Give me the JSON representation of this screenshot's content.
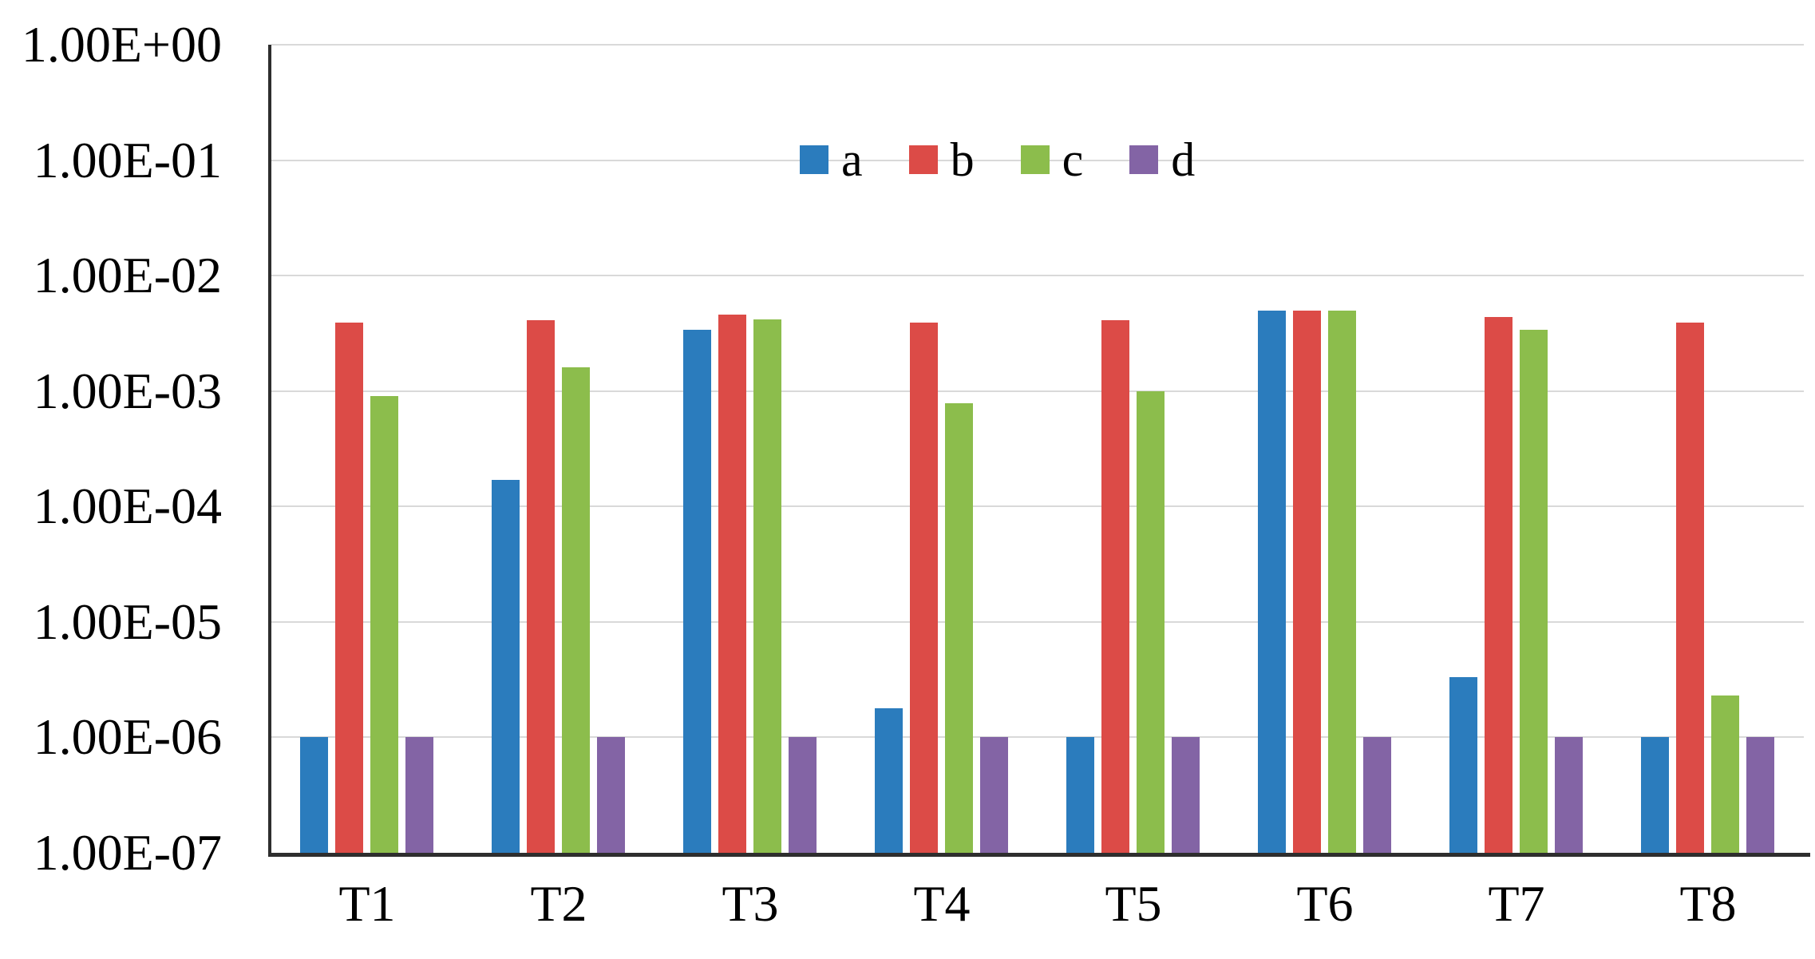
{
  "chart_data": {
    "type": "bar",
    "title": "",
    "categories": [
      "T1",
      "T2",
      "T3",
      "T4",
      "T5",
      "T6",
      "T7",
      "T8"
    ],
    "series": [
      {
        "name": "a",
        "color": "#2B7CBD",
        "values": [
          1e-06,
          0.00017,
          0.0034,
          1.8e-06,
          1e-06,
          0.005,
          3.3e-06,
          1e-06
        ]
      },
      {
        "name": "b",
        "color": "#DC4B47",
        "values": [
          0.0039,
          0.0041,
          0.0046,
          0.0039,
          0.0041,
          0.005,
          0.0044,
          0.0039
        ]
      },
      {
        "name": "c",
        "color": "#8CBD4C",
        "values": [
          0.0009,
          0.0016,
          0.0042,
          0.00078,
          0.001,
          0.005,
          0.0034,
          2.3e-06
        ]
      },
      {
        "name": "d",
        "color": "#8364A5",
        "values": [
          1e-06,
          1e-06,
          1e-06,
          1e-06,
          1e-06,
          1e-06,
          1e-06,
          1e-06
        ]
      }
    ],
    "y_axis": {
      "scale": "log",
      "min": 1e-07,
      "max": 1.0,
      "tick_labels": [
        "1.00E+00",
        "1.00E-01",
        "1.00E-02",
        "1.00E-03",
        "1.00E-04",
        "1.00E-05",
        "1.00E-06",
        "1.00E-07"
      ]
    },
    "xlabel": "",
    "ylabel": "",
    "grid": true,
    "legend_position": "top-center",
    "colors": {
      "gridline": "#D9D9D9",
      "axis": "#2E2E2E",
      "text": "#000000",
      "background": "#FFFFFF"
    }
  }
}
